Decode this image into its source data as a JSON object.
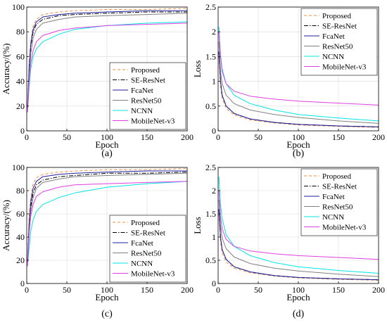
{
  "colors": {
    "Proposed": "#f28c3c",
    "SE-ResNet": "#000000",
    "FcaNet": "#1f1f9f",
    "ResNet50": "#808080",
    "NCNN": "#00e5e5",
    "MobileNet-v3": "#e040e0"
  },
  "chart_data": [
    {
      "panel": "(a)",
      "type": "line",
      "xlabel": "Epoch",
      "ylabel": "Accuracy/(%)",
      "xlim": [
        0,
        200
      ],
      "ylim": [
        0,
        100
      ],
      "xticks": [
        0,
        50,
        100,
        150,
        200
      ],
      "yticks": [
        0,
        20,
        40,
        60,
        80,
        100
      ],
      "grid": true,
      "legend": "bottom-right",
      "series": [
        {
          "name": "Proposed",
          "style": "dashed",
          "x": [
            1,
            3,
            5,
            8,
            12,
            20,
            40,
            60,
            100,
            150,
            200
          ],
          "y": [
            20,
            55,
            72,
            85,
            90,
            94,
            96,
            97,
            98,
            98,
            99
          ]
        },
        {
          "name": "SE-ResNet",
          "style": "dotdash",
          "x": [
            1,
            3,
            5,
            8,
            12,
            20,
            40,
            60,
            100,
            150,
            200
          ],
          "y": [
            18,
            50,
            68,
            80,
            86,
            90,
            93,
            94,
            95,
            96,
            96
          ]
        },
        {
          "name": "FcaNet",
          "style": "solid",
          "x": [
            1,
            3,
            5,
            8,
            12,
            20,
            40,
            60,
            100,
            150,
            200
          ],
          "y": [
            20,
            52,
            70,
            82,
            88,
            92,
            94,
            95,
            96,
            97,
            97
          ]
        },
        {
          "name": "ResNet50",
          "style": "solid",
          "x": [
            1,
            3,
            5,
            8,
            12,
            20,
            40,
            60,
            100,
            150,
            200
          ],
          "y": [
            18,
            45,
            62,
            75,
            82,
            87,
            90,
            92,
            93,
            94,
            95
          ]
        },
        {
          "name": "NCNN",
          "style": "solid",
          "x": [
            1,
            3,
            5,
            8,
            12,
            20,
            40,
            60,
            100,
            150,
            200
          ],
          "y": [
            15,
            35,
            50,
            60,
            66,
            72,
            78,
            82,
            85,
            87,
            88
          ]
        },
        {
          "name": "MobileNet-v3",
          "style": "solid",
          "x": [
            1,
            3,
            5,
            8,
            12,
            20,
            40,
            60,
            100,
            150,
            200
          ],
          "y": [
            15,
            40,
            55,
            65,
            72,
            77,
            81,
            83,
            85,
            86,
            87
          ]
        }
      ]
    },
    {
      "panel": "(b)",
      "type": "line",
      "xlabel": "Epoch",
      "ylabel": "Loss",
      "xlim": [
        0,
        200
      ],
      "ylim": [
        0,
        2.5
      ],
      "xticks": [
        0,
        50,
        100,
        150,
        200
      ],
      "yticks": [
        0,
        0.5,
        1,
        1.5,
        2,
        2.5
      ],
      "grid": true,
      "legend": "top-right",
      "series": [
        {
          "name": "Proposed",
          "style": "dashed",
          "x": [
            1,
            3,
            5,
            10,
            20,
            40,
            70,
            100,
            150,
            200
          ],
          "y": [
            1.5,
            0.9,
            0.65,
            0.45,
            0.32,
            0.22,
            0.16,
            0.12,
            0.09,
            0.07
          ]
        },
        {
          "name": "SE-ResNet",
          "style": "dotdash",
          "x": [
            1,
            3,
            5,
            10,
            20,
            40,
            70,
            100,
            150,
            200
          ],
          "y": [
            1.6,
            1.0,
            0.72,
            0.5,
            0.35,
            0.24,
            0.17,
            0.13,
            0.1,
            0.08
          ]
        },
        {
          "name": "FcaNet",
          "style": "solid",
          "x": [
            1,
            3,
            5,
            10,
            20,
            40,
            70,
            100,
            150,
            200
          ],
          "y": [
            1.6,
            1.0,
            0.72,
            0.5,
            0.35,
            0.24,
            0.17,
            0.13,
            0.1,
            0.08
          ]
        },
        {
          "name": "ResNet50",
          "style": "solid",
          "x": [
            1,
            3,
            5,
            10,
            20,
            40,
            70,
            100,
            150,
            200
          ],
          "y": [
            1.8,
            1.2,
            0.95,
            0.72,
            0.55,
            0.42,
            0.33,
            0.27,
            0.2,
            0.15
          ]
        },
        {
          "name": "NCNN",
          "style": "solid",
          "x": [
            1,
            3,
            5,
            10,
            20,
            40,
            70,
            100,
            150,
            200
          ],
          "y": [
            2.1,
            1.55,
            1.25,
            0.95,
            0.72,
            0.55,
            0.42,
            0.33,
            0.26,
            0.2
          ]
        },
        {
          "name": "MobileNet-v3",
          "style": "solid",
          "x": [
            1,
            3,
            5,
            10,
            20,
            40,
            70,
            100,
            150,
            200
          ],
          "y": [
            2.0,
            1.5,
            1.2,
            0.95,
            0.8,
            0.7,
            0.64,
            0.6,
            0.56,
            0.52
          ]
        }
      ]
    },
    {
      "panel": "(c)",
      "type": "line",
      "xlabel": "Epoch",
      "ylabel": "Accuracy/(%)",
      "xlim": [
        0,
        200
      ],
      "ylim": [
        0,
        100
      ],
      "xticks": [
        0,
        50,
        100,
        150,
        200
      ],
      "yticks": [
        0,
        20,
        40,
        60,
        80,
        100
      ],
      "grid": true,
      "legend": "bottom-right",
      "series": [
        {
          "name": "Proposed",
          "style": "dashed",
          "x": [
            1,
            3,
            5,
            8,
            12,
            20,
            40,
            60,
            100,
            150,
            200
          ],
          "y": [
            20,
            58,
            74,
            86,
            91,
            94,
            96,
            97,
            98,
            98,
            99
          ]
        },
        {
          "name": "SE-ResNet",
          "style": "dotdash",
          "x": [
            1,
            3,
            5,
            8,
            12,
            20,
            40,
            60,
            100,
            150,
            200
          ],
          "y": [
            18,
            50,
            66,
            78,
            85,
            89,
            92,
            93,
            95,
            95,
            96
          ]
        },
        {
          "name": "FcaNet",
          "style": "solid",
          "x": [
            1,
            3,
            5,
            8,
            12,
            20,
            40,
            60,
            100,
            150,
            200
          ],
          "y": [
            20,
            52,
            70,
            82,
            88,
            92,
            94,
            95,
            96,
            97,
            97
          ]
        },
        {
          "name": "ResNet50",
          "style": "solid",
          "x": [
            1,
            3,
            5,
            8,
            12,
            20,
            40,
            60,
            100,
            150,
            200
          ],
          "y": [
            18,
            46,
            62,
            74,
            82,
            87,
            90,
            92,
            93,
            94,
            95
          ]
        },
        {
          "name": "NCNN",
          "style": "solid",
          "x": [
            1,
            3,
            5,
            8,
            12,
            20,
            40,
            60,
            100,
            150,
            200
          ],
          "y": [
            15,
            30,
            45,
            55,
            62,
            68,
            74,
            78,
            83,
            86,
            88
          ]
        },
        {
          "name": "MobileNet-v3",
          "style": "solid",
          "x": [
            1,
            3,
            5,
            8,
            12,
            20,
            40,
            60,
            100,
            150,
            200
          ],
          "y": [
            15,
            42,
            58,
            68,
            75,
            79,
            83,
            85,
            86,
            87,
            88
          ]
        }
      ]
    },
    {
      "panel": "(d)",
      "type": "line",
      "xlabel": "Epoch",
      "ylabel": "Loss",
      "xlim": [
        0,
        200
      ],
      "ylim": [
        0,
        2.5
      ],
      "xticks": [
        0,
        50,
        100,
        150,
        200
      ],
      "yticks": [
        0,
        0.5,
        1,
        1.5,
        2,
        2.5
      ],
      "grid": true,
      "legend": "top-right",
      "series": [
        {
          "name": "Proposed",
          "style": "dashed",
          "x": [
            1,
            3,
            5,
            10,
            20,
            40,
            70,
            100,
            150,
            200
          ],
          "y": [
            1.5,
            0.9,
            0.66,
            0.46,
            0.33,
            0.23,
            0.16,
            0.12,
            0.09,
            0.07
          ]
        },
        {
          "name": "SE-ResNet",
          "style": "dotdash",
          "x": [
            1,
            3,
            5,
            10,
            20,
            40,
            70,
            100,
            150,
            200
          ],
          "y": [
            1.6,
            1.0,
            0.73,
            0.52,
            0.36,
            0.25,
            0.17,
            0.13,
            0.1,
            0.08
          ]
        },
        {
          "name": "FcaNet",
          "style": "solid",
          "x": [
            1,
            3,
            5,
            10,
            20,
            40,
            70,
            100,
            150,
            200
          ],
          "y": [
            1.6,
            1.0,
            0.73,
            0.52,
            0.36,
            0.25,
            0.17,
            0.13,
            0.1,
            0.08
          ]
        },
        {
          "name": "ResNet50",
          "style": "solid",
          "x": [
            1,
            3,
            5,
            10,
            20,
            40,
            70,
            100,
            150,
            200
          ],
          "y": [
            1.8,
            1.25,
            0.98,
            0.75,
            0.57,
            0.43,
            0.33,
            0.27,
            0.2,
            0.15
          ]
        },
        {
          "name": "NCNN",
          "style": "solid",
          "x": [
            1,
            3,
            5,
            10,
            20,
            40,
            70,
            100,
            150,
            200
          ],
          "y": [
            2.3,
            1.7,
            1.4,
            1.05,
            0.8,
            0.6,
            0.45,
            0.36,
            0.28,
            0.22
          ]
        },
        {
          "name": "MobileNet-v3",
          "style": "solid",
          "x": [
            1,
            3,
            5,
            10,
            20,
            40,
            70,
            100,
            150,
            200
          ],
          "y": [
            2.0,
            1.45,
            1.18,
            0.95,
            0.8,
            0.7,
            0.64,
            0.6,
            0.56,
            0.52
          ]
        }
      ]
    }
  ]
}
